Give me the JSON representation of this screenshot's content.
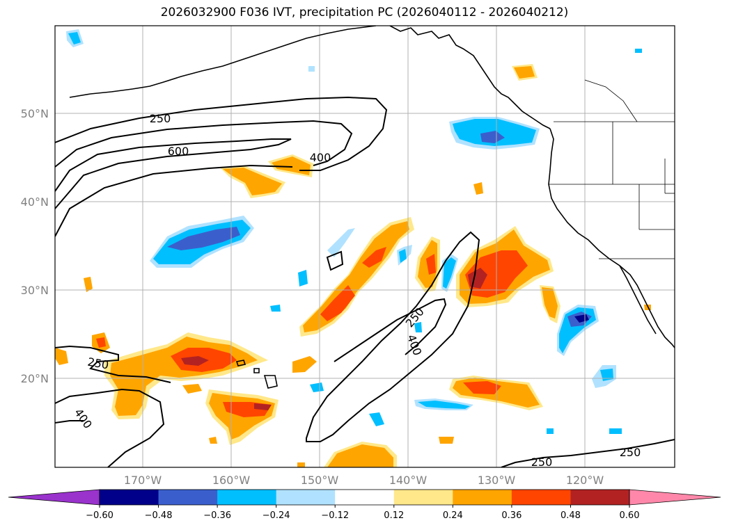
{
  "title": "2026032900 F036 IVT, precipitation PC (2026040112 - 2026040212)",
  "map": {
    "lon_range": [
      -180,
      -110
    ],
    "lat_range": [
      10,
      59.5
    ],
    "lat_lines": [
      20,
      30,
      40,
      50
    ],
    "lon_lines": [
      -170,
      -160,
      -150,
      -140,
      -130,
      -120
    ],
    "lat_labels": [
      "20°N",
      "30°N",
      "40°N",
      "50°N"
    ],
    "lon_labels": [
      "170°W",
      "160°W",
      "150°W",
      "140°W",
      "130°W",
      "120°W"
    ]
  },
  "ivt_contours": {
    "levels": [
      250,
      400,
      600
    ],
    "labels": [
      "250",
      "600",
      "400",
      "250",
      "400",
      "250",
      "400",
      "250",
      "250"
    ]
  },
  "colorbar": {
    "ticks": [
      "−0.60",
      "−0.48",
      "−0.36",
      "−0.24",
      "−0.12",
      "0.12",
      "0.24",
      "0.36",
      "0.48",
      "0.60"
    ],
    "colors": [
      "#9933cc",
      "#00008b",
      "#3a5fcd",
      "#00bfff",
      "#b0e2ff",
      "#ffffff",
      "#ffe88a",
      "#ffa500",
      "#ff4500",
      "#b22222",
      "#ff88aa"
    ]
  }
}
